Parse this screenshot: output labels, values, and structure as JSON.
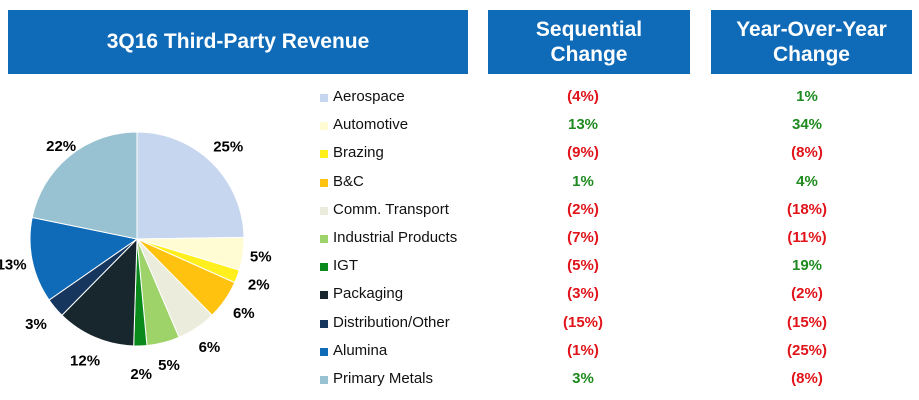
{
  "header": {
    "title": "3Q16 Third-Party Revenue",
    "sequential": "Sequential\nChange",
    "yoy": "Year-Over-Year\nChange"
  },
  "colors": {
    "header_bg": "#0f6bb8",
    "positive": "#1f8a1f",
    "negative": "#e0141a"
  },
  "chart_data": {
    "type": "pie",
    "categories": [
      "Aerospace",
      "Automotive",
      "Brazing",
      "B&C",
      "Comm. Transport",
      "Industrial Products",
      "IGT",
      "Packaging",
      "Distribution/Other",
      "Alumina",
      "Primary Metals"
    ],
    "values": [
      25,
      5,
      2,
      6,
      6,
      5,
      2,
      12,
      3,
      13,
      22
    ],
    "labels": [
      "25%",
      "5%",
      "2%",
      "6%",
      "6%",
      "5%",
      "2%",
      "12%",
      "3%",
      "13%",
      "22%"
    ],
    "colors": [
      "#c6d6ee",
      "#fffbd2",
      "#ffef1c",
      "#ffc20e",
      "#ececdc",
      "#9ed36a",
      "#0b8a1c",
      "#18272e",
      "#17365d",
      "#0f6bb8",
      "#98c2d2"
    ],
    "sequential_change": [
      "(4%)",
      "13%",
      "(9%)",
      "1%",
      "(2%)",
      "(7%)",
      "(5%)",
      "(3%)",
      "(15%)",
      "(1%)",
      "3%"
    ],
    "yoy_change": [
      "1%",
      "34%",
      "(8%)",
      "4%",
      "(18%)",
      "(11%)",
      "19%",
      "(2%)",
      "(15%)",
      "(25%)",
      "(8%)"
    ]
  }
}
